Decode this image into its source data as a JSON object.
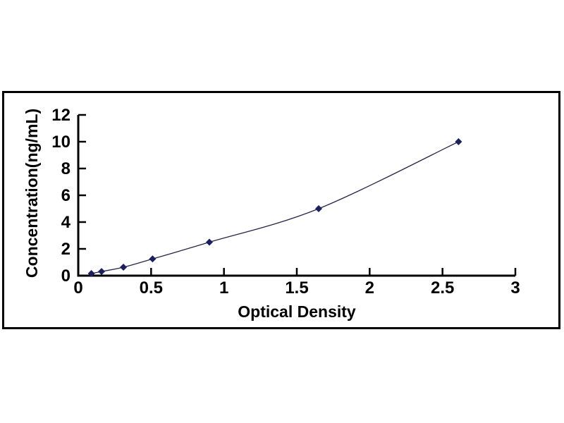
{
  "page": {
    "background": "#ffffff"
  },
  "chart_data": {
    "type": "line",
    "subtype": "standard-curve-scatter-with-smooth-line",
    "title": "",
    "xlabel": "Optical Density",
    "ylabel": "Concentration(ng/mL)",
    "x": [
      0.09,
      0.16,
      0.31,
      0.51,
      0.9,
      1.65,
      2.61
    ],
    "y": [
      0.16,
      0.31,
      0.63,
      1.25,
      2.5,
      5,
      10
    ],
    "xlim": [
      0,
      3
    ],
    "ylim": [
      0,
      12
    ],
    "xticks": [
      "0",
      "0.5",
      "1",
      "1.5",
      "2",
      "2.5",
      "3"
    ],
    "xtick_values": [
      0,
      0.5,
      1,
      1.5,
      2,
      2.5,
      3
    ],
    "yticks": [
      "0",
      "2",
      "4",
      "6",
      "8",
      "10",
      "12"
    ],
    "ytick_values": [
      0,
      2,
      4,
      6,
      8,
      10,
      12
    ],
    "grid": false,
    "legend": null,
    "marker": "diamond",
    "colors": {
      "line": "#26264d",
      "marker": "#1b1f5e",
      "axis": "#000000",
      "text": "#000000",
      "frame_border": "#000000",
      "background": "#ffffff"
    }
  }
}
